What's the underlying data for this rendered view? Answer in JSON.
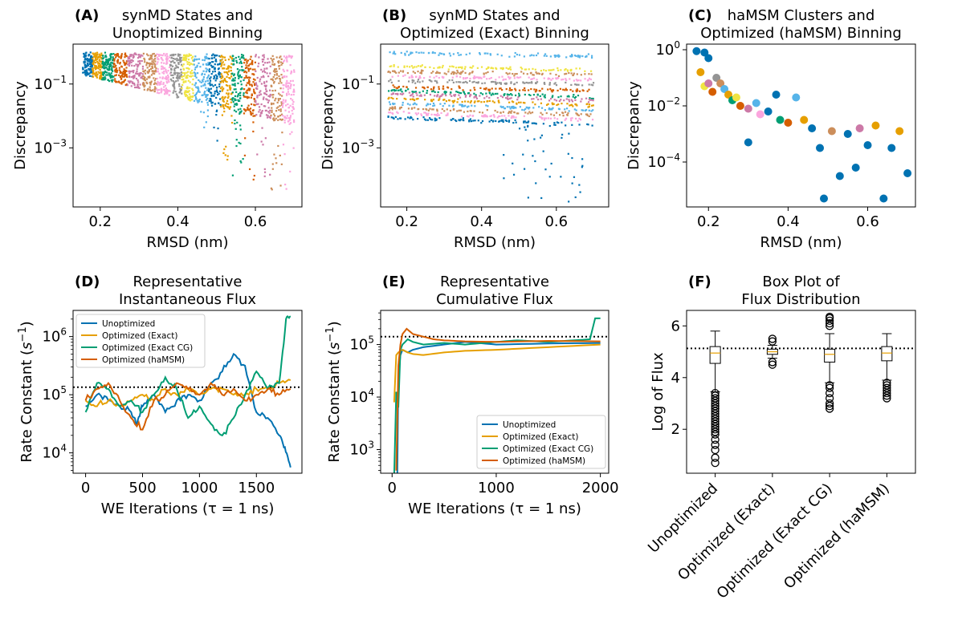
{
  "figure_title": "",
  "chart_data": [
    {
      "id": "A",
      "type": "scatter",
      "panel_label": "(A)",
      "title": [
        "synMD States and",
        "Unoptimized Binning"
      ],
      "xlabel": "RMSD (nm)",
      "ylabel": "Discrepancy",
      "xlim": [
        0.13,
        0.72
      ],
      "ylim_log10": [
        -4.85,
        0.25
      ],
      "yscale": "log",
      "xticks": [
        {
          "v": 0.2,
          "label": "0.2"
        },
        {
          "v": 0.4,
          "label": "0.4"
        },
        {
          "v": 0.6,
          "label": "0.6"
        }
      ],
      "yticks": [
        {
          "e": -1,
          "base": "10",
          "exp": "−1"
        },
        {
          "e": -3,
          "base": "10",
          "exp": "−3"
        }
      ],
      "binned": true,
      "bins": [
        {
          "x": [
            0.155,
            0.18
          ],
          "color": "#0072B2"
        },
        {
          "x": [
            0.18,
            0.205
          ],
          "color": "#E69F00"
        },
        {
          "x": [
            0.205,
            0.235
          ],
          "color": "#009E73"
        },
        {
          "x": [
            0.235,
            0.27
          ],
          "color": "#D55E00"
        },
        {
          "x": [
            0.27,
            0.31
          ],
          "color": "#CC79A7"
        },
        {
          "x": [
            0.31,
            0.345
          ],
          "color": "#CC8E5B"
        },
        {
          "x": [
            0.345,
            0.38
          ],
          "color": "#FBA6DE"
        },
        {
          "x": [
            0.38,
            0.41
          ],
          "color": "#949494"
        },
        {
          "x": [
            0.41,
            0.44
          ],
          "color": "#F0E442"
        },
        {
          "x": [
            0.44,
            0.48
          ],
          "color": "#56B4E9"
        },
        {
          "x": [
            0.48,
            0.51
          ],
          "color": "#0072B2"
        },
        {
          "x": [
            0.51,
            0.54
          ],
          "color": "#E69F00"
        },
        {
          "x": [
            0.54,
            0.57
          ],
          "color": "#009E73"
        },
        {
          "x": [
            0.57,
            0.6
          ],
          "color": "#D55E00"
        },
        {
          "x": [
            0.6,
            0.64
          ],
          "color": "#CC79A7"
        },
        {
          "x": [
            0.64,
            0.67
          ],
          "color": "#CC8E5B"
        },
        {
          "x": [
            0.67,
            0.7
          ],
          "color": "#FBA6DE"
        }
      ]
    },
    {
      "id": "B",
      "type": "scatter",
      "panel_label": "(B)",
      "title": [
        "synMD States and",
        "Optimized (Exact) Binning"
      ],
      "xlabel": "RMSD (nm)",
      "ylabel": "Discrepancy",
      "xlim": [
        0.13,
        0.74
      ],
      "ylim_log10": [
        -4.85,
        0.25
      ],
      "yscale": "log",
      "xticks": [
        {
          "v": 0.2,
          "label": "0.2"
        },
        {
          "v": 0.4,
          "label": "0.4"
        },
        {
          "v": 0.6,
          "label": "0.6"
        }
      ],
      "yticks": [
        {
          "e": -1,
          "base": "10",
          "exp": "−1"
        },
        {
          "e": -3,
          "base": "10",
          "exp": "−3"
        }
      ],
      "binned": false,
      "bands": [
        {
          "log10": -0.02,
          "color": "#56B4E9"
        },
        {
          "log10": -0.45,
          "color": "#F0E442"
        },
        {
          "log10": -0.6,
          "color": "#CC8E5B"
        },
        {
          "log10": -0.75,
          "color": "#FBA6DE"
        },
        {
          "log10": -0.9,
          "color": "#949494"
        },
        {
          "log10": -1.1,
          "color": "#D55E00"
        },
        {
          "log10": -1.2,
          "color": "#009E73"
        },
        {
          "log10": -1.3,
          "color": "#CC79A7"
        },
        {
          "log10": -1.45,
          "color": "#E69F00"
        },
        {
          "log10": -1.6,
          "color": "#56B4E9"
        },
        {
          "log10": -1.75,
          "color": "#CC8E5B"
        },
        {
          "log10": -1.9,
          "color": "#FBA6DE"
        },
        {
          "log10": -2.05,
          "color": "#0072B2"
        }
      ]
    },
    {
      "id": "C",
      "type": "scatter",
      "panel_label": "(C)",
      "title": [
        "haMSM Clusters and",
        "Optimized (haMSM) Binning"
      ],
      "xlabel": "RMSD (nm)",
      "ylabel": "Discrepancy",
      "xlim": [
        0.145,
        0.72
      ],
      "ylim_log10": [
        -5.6,
        0.2
      ],
      "yscale": "log",
      "xticks": [
        {
          "v": 0.2,
          "label": "0.2"
        },
        {
          "v": 0.4,
          "label": "0.4"
        },
        {
          "v": 0.6,
          "label": "0.6"
        }
      ],
      "yticks": [
        {
          "e": 0,
          "base": "10",
          "exp": "0"
        },
        {
          "e": -2,
          "base": "10",
          "exp": "−2"
        },
        {
          "e": -4,
          "base": "10",
          "exp": "−4"
        }
      ],
      "points": [
        {
          "x": 0.17,
          "y": -0.05,
          "c": "#0072B2"
        },
        {
          "x": 0.19,
          "y": -0.1,
          "c": "#0072B2"
        },
        {
          "x": 0.2,
          "y": -0.3,
          "c": "#0072B2"
        },
        {
          "x": 0.18,
          "y": -0.8,
          "c": "#E69F00"
        },
        {
          "x": 0.19,
          "y": -1.3,
          "c": "#F0E442"
        },
        {
          "x": 0.2,
          "y": -1.2,
          "c": "#CC79A7"
        },
        {
          "x": 0.21,
          "y": -1.5,
          "c": "#D55E00"
        },
        {
          "x": 0.22,
          "y": -1.0,
          "c": "#949494"
        },
        {
          "x": 0.23,
          "y": -1.2,
          "c": "#CC8E5B"
        },
        {
          "x": 0.24,
          "y": -1.4,
          "c": "#56B4E9"
        },
        {
          "x": 0.25,
          "y": -1.6,
          "c": "#E69F00"
        },
        {
          "x": 0.26,
          "y": -1.8,
          "c": "#009E73"
        },
        {
          "x": 0.27,
          "y": -1.7,
          "c": "#F0E442"
        },
        {
          "x": 0.28,
          "y": -2.0,
          "c": "#D55E00"
        },
        {
          "x": 0.3,
          "y": -2.1,
          "c": "#CC79A7"
        },
        {
          "x": 0.3,
          "y": -3.3,
          "c": "#0072B2"
        },
        {
          "x": 0.32,
          "y": -1.9,
          "c": "#56B4E9"
        },
        {
          "x": 0.33,
          "y": -2.3,
          "c": "#FBA6DE"
        },
        {
          "x": 0.35,
          "y": -2.2,
          "c": "#0072B2"
        },
        {
          "x": 0.37,
          "y": -1.6,
          "c": "#0072B2"
        },
        {
          "x": 0.38,
          "y": -2.5,
          "c": "#009E73"
        },
        {
          "x": 0.4,
          "y": -2.6,
          "c": "#D55E00"
        },
        {
          "x": 0.42,
          "y": -1.7,
          "c": "#56B4E9"
        },
        {
          "x": 0.44,
          "y": -2.5,
          "c": "#E69F00"
        },
        {
          "x": 0.46,
          "y": -2.8,
          "c": "#0072B2"
        },
        {
          "x": 0.48,
          "y": -3.5,
          "c": "#0072B2"
        },
        {
          "x": 0.49,
          "y": -5.3,
          "c": "#0072B2"
        },
        {
          "x": 0.51,
          "y": -2.9,
          "c": "#CC8E5B"
        },
        {
          "x": 0.53,
          "y": -4.5,
          "c": "#0072B2"
        },
        {
          "x": 0.55,
          "y": -3.0,
          "c": "#0072B2"
        },
        {
          "x": 0.57,
          "y": -4.2,
          "c": "#0072B2"
        },
        {
          "x": 0.58,
          "y": -2.8,
          "c": "#CC79A7"
        },
        {
          "x": 0.6,
          "y": -3.4,
          "c": "#0072B2"
        },
        {
          "x": 0.62,
          "y": -2.7,
          "c": "#E69F00"
        },
        {
          "x": 0.64,
          "y": -5.3,
          "c": "#0072B2"
        },
        {
          "x": 0.66,
          "y": -3.5,
          "c": "#0072B2"
        },
        {
          "x": 0.68,
          "y": -2.9,
          "c": "#E69F00"
        },
        {
          "x": 0.7,
          "y": -4.4,
          "c": "#0072B2"
        }
      ]
    },
    {
      "id": "D",
      "type": "line",
      "panel_label": "(D)",
      "title": [
        "Representative",
        "Instantaneous Flux"
      ],
      "xlabel": "WE Iterations (τ = 1 ns)",
      "ylabel": "Rate Constant ($s^{-1}$)",
      "ylabel_main": "Rate Constant (",
      "ylabel_s": "s",
      "ylabel_exp": "−1",
      "ylabel_close": ")",
      "xlim": [
        -110,
        1900
      ],
      "ylim_log10": [
        3.65,
        6.45
      ],
      "yscale": "log",
      "xticks": [
        {
          "v": 0,
          "label": "0"
        },
        {
          "v": 500,
          "label": "500"
        },
        {
          "v": 1000,
          "label": "1000"
        },
        {
          "v": 1500,
          "label": "1500"
        }
      ],
      "yticks": [
        {
          "e": 6,
          "base": "10",
          "exp": "6"
        },
        {
          "e": 5,
          "base": "10",
          "exp": "5"
        },
        {
          "e": 4,
          "base": "10",
          "exp": "4"
        }
      ],
      "reference_log10": 5.13,
      "legend": "top-left",
      "series": [
        {
          "name": "Unoptimized",
          "color": "#0072B2",
          "x": [
            0,
            100,
            200,
            300,
            400,
            450,
            500,
            600,
            700,
            800,
            900,
            1000,
            1100,
            1200,
            1300,
            1400,
            1500,
            1600,
            1700,
            1750,
            1800
          ],
          "log10": [
            4.8,
            5.0,
            4.9,
            4.8,
            4.7,
            4.5,
            4.8,
            5.0,
            4.7,
            4.9,
            5.0,
            4.9,
            5.2,
            5.4,
            5.7,
            5.5,
            4.7,
            4.6,
            4.3,
            4.1,
            3.75
          ]
        },
        {
          "name": "Optimized (Exact)",
          "color": "#E69F00",
          "x": [
            0,
            100,
            200,
            300,
            400,
            500,
            600,
            700,
            800,
            900,
            1000,
            1100,
            1200,
            1300,
            1400,
            1500,
            1600,
            1700,
            1800
          ],
          "log10": [
            4.9,
            4.8,
            4.9,
            4.8,
            4.9,
            5.0,
            4.9,
            5.1,
            5.0,
            5.1,
            5.0,
            5.1,
            5.1,
            5.0,
            5.0,
            5.1,
            5.1,
            5.2,
            5.25
          ]
        },
        {
          "name": "Optimized (Exact CG)",
          "color": "#009E73",
          "x": [
            0,
            100,
            200,
            300,
            400,
            500,
            600,
            700,
            800,
            900,
            1000,
            1100,
            1200,
            1300,
            1400,
            1500,
            1600,
            1700,
            1760,
            1800
          ],
          "log10": [
            4.7,
            5.2,
            5.1,
            4.8,
            4.9,
            4.7,
            5.0,
            5.3,
            5.1,
            4.6,
            4.8,
            4.5,
            4.3,
            4.6,
            5.0,
            5.4,
            5.1,
            5.2,
            6.3,
            6.35
          ]
        },
        {
          "name": "Optimized (haMSM)",
          "color": "#D55E00",
          "x": [
            0,
            100,
            200,
            300,
            400,
            500,
            600,
            700,
            800,
            900,
            1000,
            1100,
            1200,
            1300,
            1400,
            1500,
            1600,
            1700,
            1800
          ],
          "log10": [
            4.9,
            5.1,
            5.2,
            4.9,
            4.6,
            4.4,
            4.9,
            5.0,
            5.2,
            5.1,
            5.0,
            5.2,
            5.0,
            5.1,
            4.9,
            5.0,
            5.1,
            5.0,
            5.1
          ]
        }
      ]
    },
    {
      "id": "E",
      "type": "line",
      "panel_label": "(E)",
      "title": [
        "Representative",
        "Cumulative Flux"
      ],
      "xlabel": "WE Iterations (τ = 1 ns)",
      "ylabel": "Rate Constant ($s^{-1}$)",
      "ylabel_main": "Rate Constant (",
      "ylabel_s": "s",
      "ylabel_exp": "−1",
      "ylabel_close": ")",
      "xlim": [
        -110,
        2080
      ],
      "ylim_log10": [
        2.55,
        5.65
      ],
      "yscale": "log",
      "xticks": [
        {
          "v": 0,
          "label": "0"
        },
        {
          "v": 1000,
          "label": "1000"
        },
        {
          "v": 2000,
          "label": "2000"
        }
      ],
      "yticks": [
        {
          "e": 5,
          "base": "10",
          "exp": "5"
        },
        {
          "e": 4,
          "base": "10",
          "exp": "4"
        },
        {
          "e": 3,
          "base": "10",
          "exp": "3"
        }
      ],
      "reference_log10": 5.15,
      "legend": "bottom-right",
      "series": [
        {
          "name": "Unoptimized",
          "color": "#0072B2",
          "x": [
            50,
            60,
            80,
            100,
            150,
            200,
            300,
            500,
            700,
            1000,
            1500,
            2000
          ],
          "log10": [
            2.5,
            4.4,
            4.8,
            4.9,
            4.85,
            4.9,
            4.95,
            5.0,
            5.05,
            5.0,
            5.02,
            5.03
          ]
        },
        {
          "name": "Optimized (Exact)",
          "color": "#E69F00",
          "x": [
            20,
            40,
            60,
            100,
            150,
            200,
            300,
            500,
            700,
            1000,
            1500,
            2000
          ],
          "log10": [
            3.9,
            4.8,
            4.85,
            4.9,
            4.85,
            4.82,
            4.8,
            4.85,
            4.88,
            4.9,
            4.95,
            5.0
          ]
        },
        {
          "name": "Optimized (Exact CG)",
          "color": "#009E73",
          "x": [
            20,
            40,
            60,
            80,
            100,
            150,
            200,
            300,
            500,
            700,
            1000,
            1200,
            1500,
            1900,
            1950,
            2000
          ],
          "log10": [
            2.5,
            4.1,
            3.8,
            4.9,
            5.0,
            5.1,
            5.05,
            5.0,
            5.03,
            5.0,
            5.05,
            5.08,
            5.05,
            5.1,
            5.5,
            5.5
          ]
        },
        {
          "name": "Optimized (haMSM)",
          "color": "#D55E00",
          "x": [
            40,
            60,
            80,
            100,
            140,
            200,
            300,
            400,
            500,
            700,
            1000,
            1500,
            2000
          ],
          "log10": [
            2.6,
            4.6,
            5.0,
            5.2,
            5.3,
            5.2,
            5.15,
            5.1,
            5.08,
            5.06,
            5.05,
            5.07,
            5.06
          ]
        }
      ]
    },
    {
      "id": "F",
      "type": "box",
      "panel_label": "(F)",
      "title": [
        "Box Plot of",
        "Flux Distribution"
      ],
      "xlabel": "",
      "ylabel": "Log of Flux",
      "ylim": [
        0.3,
        6.6
      ],
      "yticks": [
        {
          "v": 2,
          "label": "2"
        },
        {
          "v": 4,
          "label": "4"
        },
        {
          "v": 6,
          "label": "6"
        }
      ],
      "reference": 5.13,
      "categories": [
        "Unoptimized",
        "Optimized (Exact)",
        "Optimized (Exact CG)",
        "Optimized (haMSM)"
      ],
      "boxes": [
        {
          "whislo": 3.45,
          "q1": 4.55,
          "med": 4.95,
          "q3": 5.2,
          "whishi": 5.8,
          "outliers": [
            3.4,
            3.3,
            3.2,
            3.1,
            3.0,
            2.9,
            2.8,
            2.7,
            2.6,
            2.5,
            2.4,
            2.3,
            2.2,
            2.1,
            2.0,
            1.9,
            1.8,
            1.6,
            1.4,
            1.2,
            0.9,
            0.7
          ]
        },
        {
          "whislo": 4.75,
          "q1": 4.9,
          "med": 5.0,
          "q3": 5.1,
          "whishi": 5.25,
          "outliers": [
            5.4,
            5.5,
            4.6,
            4.5
          ]
        },
        {
          "whislo": 3.8,
          "q1": 4.6,
          "med": 4.9,
          "q3": 5.1,
          "whishi": 5.7,
          "outliers": [
            6.0,
            6.1,
            6.2,
            6.3,
            6.35,
            3.7,
            3.6,
            3.4,
            3.2,
            3.0,
            2.9,
            2.8
          ]
        },
        {
          "whislo": 3.9,
          "q1": 4.65,
          "med": 4.95,
          "q3": 5.2,
          "whishi": 5.7,
          "outliers": [
            3.8,
            3.7,
            3.6,
            3.5,
            3.4,
            3.3,
            3.2
          ]
        }
      ]
    }
  ]
}
